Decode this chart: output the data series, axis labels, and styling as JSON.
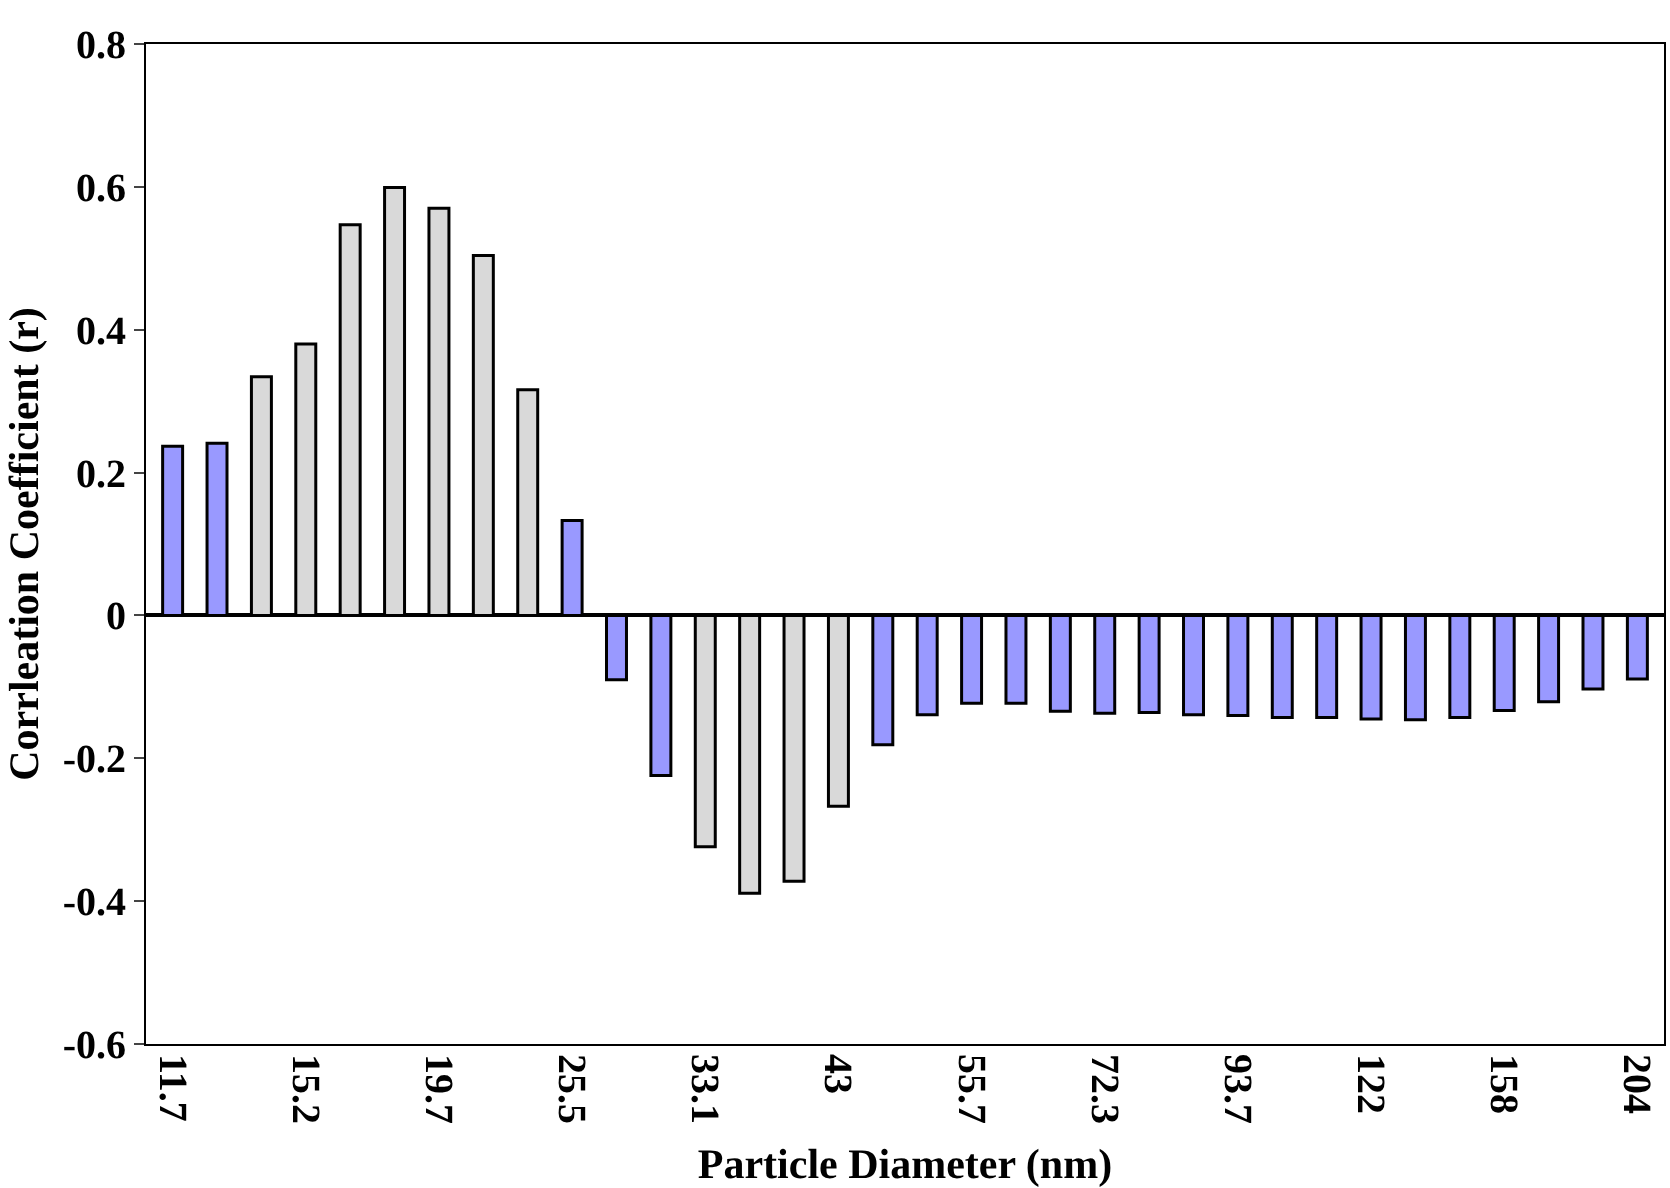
{
  "chart_data": {
    "type": "bar",
    "xlabel": "Particle Diameter (nm)",
    "ylabel": "Corrleation Coefficient (r)",
    "categories": [
      "11.7",
      null,
      null,
      "15.2",
      null,
      null,
      "19.7",
      null,
      null,
      "25.5",
      null,
      null,
      "33.1",
      null,
      null,
      "43",
      null,
      null,
      "55.7",
      null,
      null,
      "72.3",
      null,
      null,
      "93.7",
      null,
      null,
      "122",
      null,
      null,
      "158",
      null,
      null,
      "204"
    ],
    "values": [
      0.237,
      0.241,
      0.334,
      0.38,
      0.547,
      0.599,
      0.57,
      0.504,
      0.316,
      0.133,
      -0.09,
      -0.224,
      -0.324,
      -0.389,
      -0.372,
      -0.267,
      -0.181,
      -0.139,
      -0.123,
      -0.123,
      -0.134,
      -0.137,
      -0.136,
      -0.139,
      -0.14,
      -0.143,
      -0.143,
      -0.145,
      -0.146,
      -0.143,
      -0.133,
      -0.121,
      -0.103,
      -0.089
    ],
    "colors": [
      "#9999ff",
      "#9999ff",
      "#d9d9d9",
      "#d9d9d9",
      "#d9d9d9",
      "#d9d9d9",
      "#d9d9d9",
      "#d9d9d9",
      "#d9d9d9",
      "#9999ff",
      "#9999ff",
      "#9999ff",
      "#d9d9d9",
      "#d9d9d9",
      "#d9d9d9",
      "#d9d9d9",
      "#9999ff",
      "#9999ff",
      "#9999ff",
      "#9999ff",
      "#9999ff",
      "#9999ff",
      "#9999ff",
      "#9999ff",
      "#9999ff",
      "#9999ff",
      "#9999ff",
      "#9999ff",
      "#9999ff",
      "#9999ff",
      "#9999ff",
      "#9999ff",
      "#9999ff",
      "#9999ff"
    ],
    "ylim": [
      -0.6,
      0.8
    ],
    "yticks": [
      -0.6,
      -0.4,
      -0.2,
      0,
      0.2,
      0.4,
      0.6,
      0.8
    ]
  }
}
